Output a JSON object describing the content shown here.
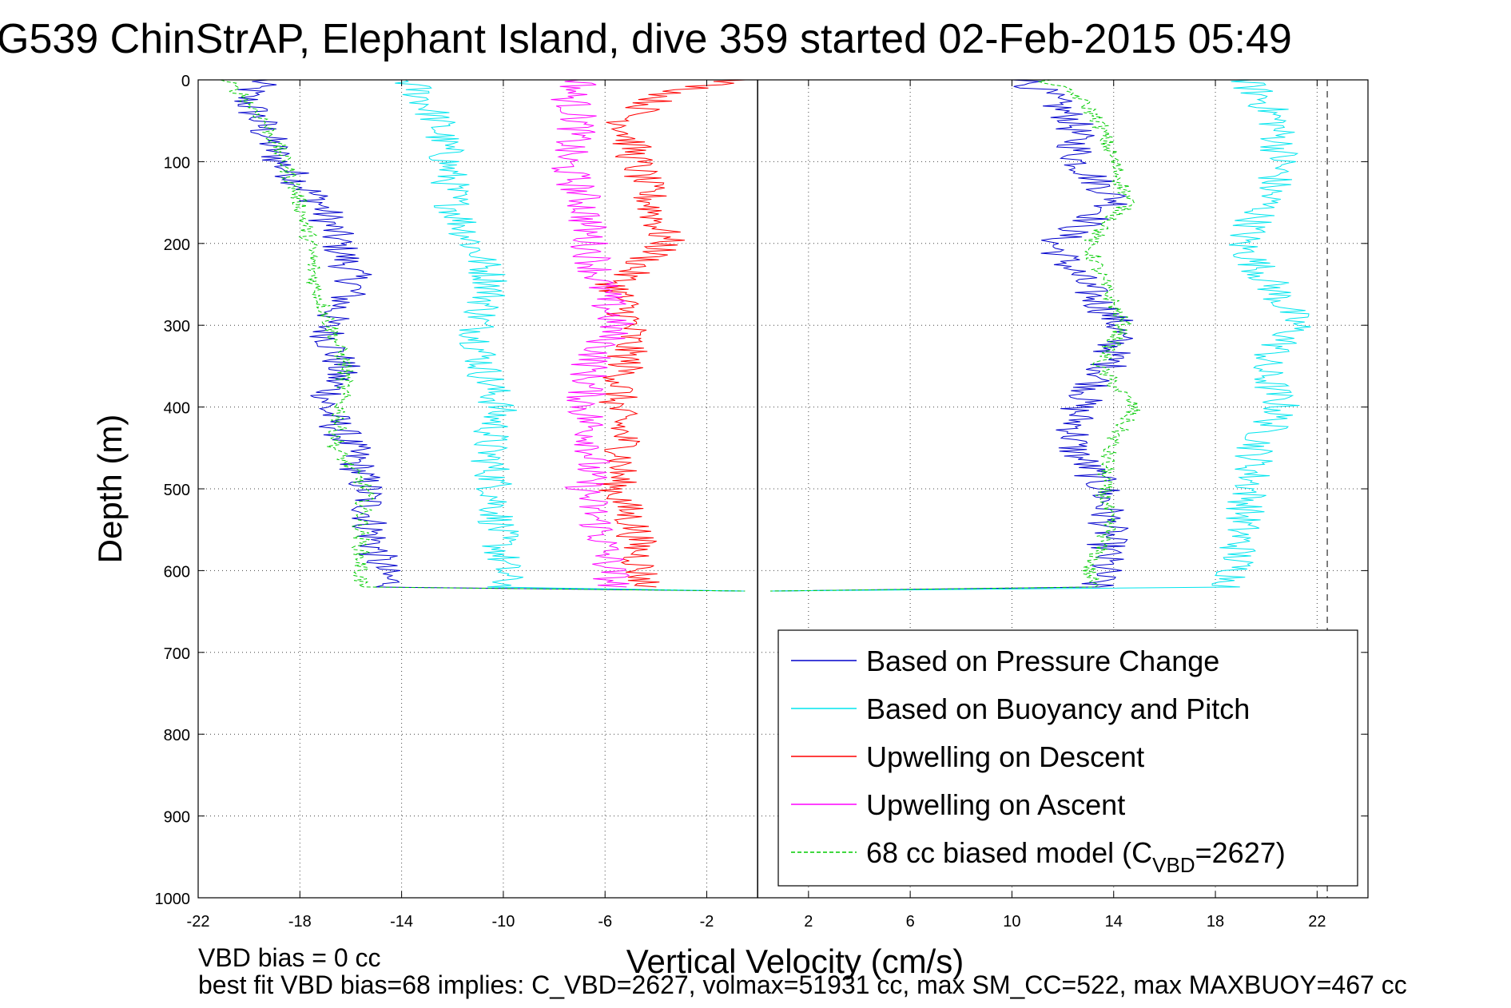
{
  "chart_data": {
    "type": "line",
    "title": "G539 ChinStrAP, Elephant Island, dive 359 started 02-Feb-2015 05:49",
    "xlabel": "Vertical Velocity (cm/s)",
    "ylabel": "Depth (m)",
    "xlim": [
      -22,
      24
    ],
    "ylim": [
      1000,
      0
    ],
    "y_reversed": true,
    "grid": true,
    "legend_position": "bottom-right",
    "x_ticks": [
      "-22",
      "-18",
      "-14",
      "-10",
      "-6",
      "-2",
      "2",
      "6",
      "10",
      "14",
      "18",
      "22"
    ],
    "y_ticks": [
      "0",
      "100",
      "200",
      "300",
      "400",
      "500",
      "600",
      "700",
      "800",
      "900",
      "1000"
    ],
    "reference_lines": [
      {
        "x": 0,
        "style": "solid",
        "color": "#000000"
      },
      {
        "x": 22.4,
        "style": "dashed",
        "color": "#555555"
      }
    ],
    "series": [
      {
        "name": "Based on Pressure Change",
        "color": "#0000cc",
        "style": "solid",
        "profiles": [
          {
            "phase": "descent",
            "depth": [
              0,
              20,
              50,
              100,
              150,
              200,
              250,
              300,
              350,
              400,
              450,
              500,
              550,
              600,
              620,
              625
            ],
            "velocity": [
              -19.5,
              -20.2,
              -19.6,
              -18.8,
              -17.2,
              -16.5,
              -15.8,
              -17.0,
              -16.4,
              -17.0,
              -16.0,
              -15.4,
              -15.2,
              -14.8,
              -14.3,
              -0.5
            ]
          },
          {
            "phase": "ascent",
            "depth": [
              0,
              20,
              50,
              100,
              150,
              200,
              250,
              300,
              350,
              400,
              450,
              500,
              550,
              600,
              620,
              625
            ],
            "velocity": [
              10.5,
              11.4,
              12.4,
              12.6,
              14.2,
              11.6,
              12.8,
              14.2,
              13.8,
              12.6,
              12.4,
              13.6,
              13.8,
              13.6,
              13.2,
              0.5
            ]
          }
        ]
      },
      {
        "name": "Based on Buoyancy and Pitch",
        "color": "#00e5ee",
        "style": "solid",
        "profiles": [
          {
            "phase": "descent",
            "depth": [
              0,
              20,
              50,
              100,
              150,
              200,
              250,
              300,
              350,
              400,
              450,
              500,
              550,
              600,
              620,
              625
            ],
            "velocity": [
              -13.8,
              -13.2,
              -12.6,
              -12.2,
              -12.0,
              -11.2,
              -10.4,
              -11.0,
              -10.8,
              -10.2,
              -10.6,
              -10.3,
              -10.2,
              -10.0,
              -9.9,
              -0.5
            ]
          },
          {
            "phase": "ascent",
            "depth": [
              0,
              20,
              50,
              100,
              150,
              200,
              250,
              300,
              350,
              400,
              450,
              500,
              550,
              600,
              620,
              625
            ],
            "velocity": [
              19.0,
              19.8,
              20.4,
              20.6,
              20.0,
              19.0,
              20.2,
              21.2,
              19.8,
              20.6,
              19.6,
              19.4,
              19.0,
              18.8,
              18.6,
              0.5
            ]
          }
        ]
      },
      {
        "name": "Upwelling on Descent",
        "color": "#ff0000",
        "style": "solid",
        "profiles": [
          {
            "phase": "descent",
            "depth": [
              0,
              20,
              50,
              100,
              150,
              200,
              250,
              300,
              350,
              400,
              450,
              500,
              550,
              600,
              620
            ],
            "velocity": [
              -1.0,
              -3.8,
              -5.2,
              -4.8,
              -4.2,
              -3.6,
              -5.6,
              -5.0,
              -5.2,
              -5.6,
              -5.2,
              -5.6,
              -4.8,
              -4.6,
              -4.4
            ]
          }
        ]
      },
      {
        "name": "Upwelling on Ascent",
        "color": "#ff00ff",
        "style": "solid",
        "profiles": [
          {
            "phase": "ascent",
            "depth": [
              0,
              20,
              50,
              100,
              150,
              200,
              250,
              300,
              350,
              400,
              450,
              500,
              550,
              600,
              620
            ],
            "velocity": [
              -6.8,
              -7.4,
              -7.0,
              -7.6,
              -6.8,
              -6.6,
              -6.2,
              -5.6,
              -6.6,
              -6.8,
              -6.4,
              -6.8,
              -6.2,
              -5.8,
              -5.6
            ]
          }
        ]
      },
      {
        "name": "68 cc biased model (C",
        "name_sub": "VBD",
        "name_suffix": "=2627)",
        "color": "#00cc00",
        "style": "dashed",
        "profiles": [
          {
            "phase": "descent",
            "depth": [
              0,
              20,
              50,
              100,
              150,
              200,
              250,
              300,
              350,
              400,
              450,
              500,
              550,
              600,
              620,
              625
            ],
            "velocity": [
              -21.0,
              -20.2,
              -19.4,
              -18.6,
              -18.0,
              -17.6,
              -17.4,
              -16.8,
              -16.2,
              -16.4,
              -16.6,
              -15.4,
              -15.6,
              -15.6,
              -15.6,
              -0.5
            ]
          },
          {
            "phase": "ascent",
            "depth": [
              0,
              20,
              50,
              100,
              150,
              200,
              250,
              300,
              350,
              400,
              450,
              500,
              550,
              600,
              620,
              625
            ],
            "velocity": [
              11.2,
              12.6,
              13.4,
              14.0,
              14.6,
              13.0,
              13.6,
              14.4,
              13.4,
              14.8,
              13.8,
              13.6,
              13.8,
              13.0,
              13.2,
              0.5
            ]
          }
        ]
      }
    ],
    "notes": [
      "VBD bias = 0 cc",
      "best fit VBD bias=68 implies: C_VBD=2627, volmax=51931 cc, max SM_CC=522, max MAXBUOY=467 cc"
    ]
  }
}
